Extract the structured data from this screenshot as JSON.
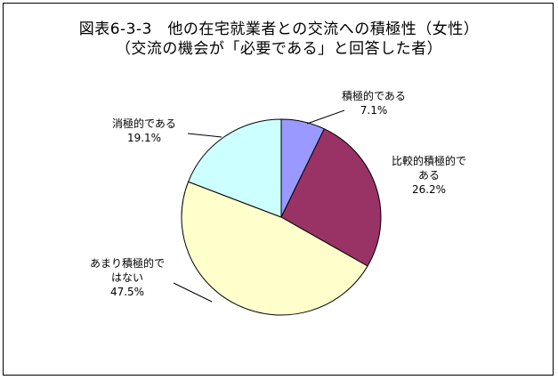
{
  "chart_data": {
    "type": "pie",
    "title": "図表6-3-3　他の在宅就業者との交流への積極性（女性）",
    "subtitle": "（交流の機会が「必要である」と回答した者）",
    "slices": [
      {
        "label_lines": [
          "積極的である"
        ],
        "value": 7.1,
        "value_label": "7.1%",
        "color": "#9999ff"
      },
      {
        "label_lines": [
          "比較的積極的で",
          "ある"
        ],
        "value": 26.2,
        "value_label": "26.2%",
        "color": "#993366"
      },
      {
        "label_lines": [
          "あまり積極的で",
          "はない"
        ],
        "value": 47.5,
        "value_label": "47.5%",
        "color": "#ffffcc"
      },
      {
        "label_lines": [
          "消極的である"
        ],
        "value": 19.1,
        "value_label": "19.1%",
        "color": "#ccffff"
      }
    ],
    "start": "12 o'clock",
    "direction": "clockwise"
  }
}
